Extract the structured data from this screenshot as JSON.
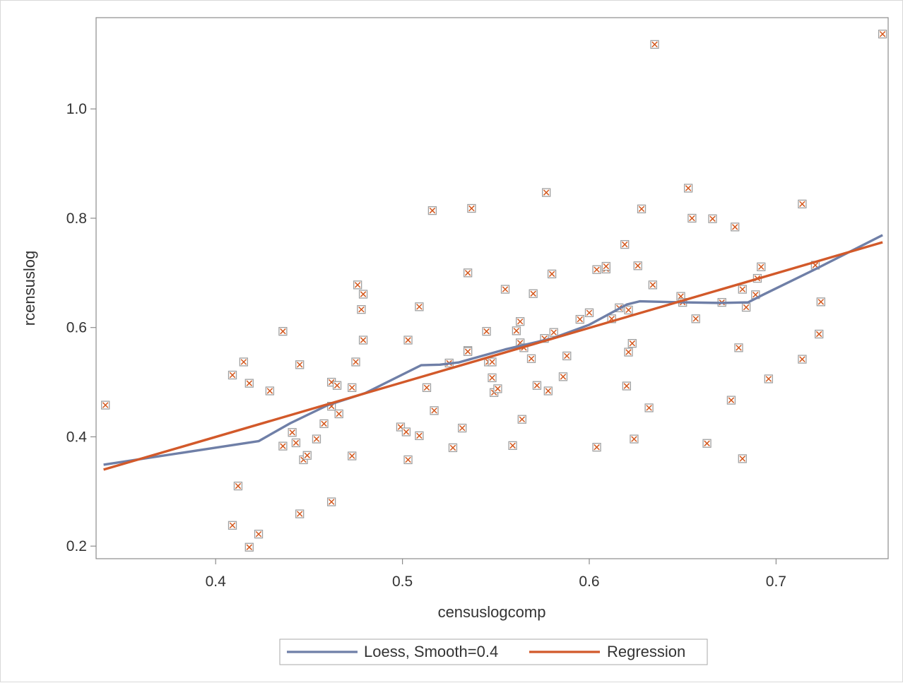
{
  "chart_data": {
    "type": "scatter",
    "title": "",
    "xlabel": "censuslogcomp",
    "ylabel": "rcensuslog",
    "xlim": [
      0.336,
      0.76
    ],
    "ylim": [
      0.177,
      1.167
    ],
    "xticks": [
      0.4,
      0.5,
      0.6,
      0.7
    ],
    "yticks": [
      0.2,
      0.4,
      0.6,
      0.8,
      1.0
    ],
    "xtick_labels": [
      "0.4",
      "0.5",
      "0.6",
      "0.7"
    ],
    "ytick_labels": [
      "0.2",
      "0.4",
      "0.6",
      "0.8",
      "1.0"
    ],
    "grid": false,
    "legend_position": "bottom",
    "colors": {
      "points_outline": "#a0a0a0",
      "points_mark": "#d4581e",
      "loess": "#6f7fa7",
      "regression": "#d2592a",
      "axis": "#8c8c8c"
    },
    "scatter": {
      "marker": "square-x",
      "points": [
        [
          0.341,
          0.458
        ],
        [
          0.409,
          0.513
        ],
        [
          0.409,
          0.238
        ],
        [
          0.412,
          0.31
        ],
        [
          0.415,
          0.537
        ],
        [
          0.418,
          0.498
        ],
        [
          0.418,
          0.198
        ],
        [
          0.423,
          0.222
        ],
        [
          0.429,
          0.484
        ],
        [
          0.436,
          0.593
        ],
        [
          0.436,
          0.383
        ],
        [
          0.441,
          0.408
        ],
        [
          0.443,
          0.389
        ],
        [
          0.445,
          0.532
        ],
        [
          0.445,
          0.259
        ],
        [
          0.447,
          0.358
        ],
        [
          0.449,
          0.366
        ],
        [
          0.454,
          0.396
        ],
        [
          0.458,
          0.424
        ],
        [
          0.462,
          0.5
        ],
        [
          0.462,
          0.456
        ],
        [
          0.462,
          0.281
        ],
        [
          0.465,
          0.494
        ],
        [
          0.466,
          0.442
        ],
        [
          0.473,
          0.49
        ],
        [
          0.473,
          0.365
        ],
        [
          0.475,
          0.537
        ],
        [
          0.476,
          0.678
        ],
        [
          0.478,
          0.633
        ],
        [
          0.479,
          0.661
        ],
        [
          0.479,
          0.577
        ],
        [
          0.499,
          0.418
        ],
        [
          0.502,
          0.409
        ],
        [
          0.503,
          0.577
        ],
        [
          0.503,
          0.358
        ],
        [
          0.509,
          0.638
        ],
        [
          0.509,
          0.402
        ],
        [
          0.513,
          0.49
        ],
        [
          0.516,
          0.814
        ],
        [
          0.517,
          0.448
        ],
        [
          0.525,
          0.535
        ],
        [
          0.527,
          0.38
        ],
        [
          0.532,
          0.416
        ],
        [
          0.535,
          0.558
        ],
        [
          0.535,
          0.556
        ],
        [
          0.535,
          0.7
        ],
        [
          0.537,
          0.818
        ],
        [
          0.545,
          0.593
        ],
        [
          0.546,
          0.537
        ],
        [
          0.548,
          0.537
        ],
        [
          0.548,
          0.508
        ],
        [
          0.549,
          0.481
        ],
        [
          0.551,
          0.488
        ],
        [
          0.555,
          0.67
        ],
        [
          0.559,
          0.384
        ],
        [
          0.561,
          0.594
        ],
        [
          0.563,
          0.611
        ],
        [
          0.563,
          0.572
        ],
        [
          0.564,
          0.432
        ],
        [
          0.565,
          0.563
        ],
        [
          0.569,
          0.543
        ],
        [
          0.57,
          0.662
        ],
        [
          0.572,
          0.494
        ],
        [
          0.576,
          0.58
        ],
        [
          0.577,
          0.847
        ],
        [
          0.578,
          0.484
        ],
        [
          0.58,
          0.698
        ],
        [
          0.581,
          0.591
        ],
        [
          0.586,
          0.51
        ],
        [
          0.588,
          0.548
        ],
        [
          0.595,
          0.615
        ],
        [
          0.6,
          0.627
        ],
        [
          0.604,
          0.706
        ],
        [
          0.604,
          0.381
        ],
        [
          0.609,
          0.707
        ],
        [
          0.609,
          0.712
        ],
        [
          0.612,
          0.616
        ],
        [
          0.616,
          0.636
        ],
        [
          0.619,
          0.752
        ],
        [
          0.62,
          0.493
        ],
        [
          0.621,
          0.632
        ],
        [
          0.621,
          0.555
        ],
        [
          0.623,
          0.571
        ],
        [
          0.624,
          0.396
        ],
        [
          0.626,
          0.713
        ],
        [
          0.628,
          0.817
        ],
        [
          0.632,
          0.453
        ],
        [
          0.634,
          0.678
        ],
        [
          0.635,
          1.118
        ],
        [
          0.649,
          0.657
        ],
        [
          0.65,
          0.646
        ],
        [
          0.653,
          0.855
        ],
        [
          0.655,
          0.8
        ],
        [
          0.657,
          0.616
        ],
        [
          0.663,
          0.388
        ],
        [
          0.666,
          0.799
        ],
        [
          0.671,
          0.646
        ],
        [
          0.676,
          0.467
        ],
        [
          0.678,
          0.784
        ],
        [
          0.68,
          0.563
        ],
        [
          0.682,
          0.67
        ],
        [
          0.682,
          0.36
        ],
        [
          0.684,
          0.637
        ],
        [
          0.689,
          0.66
        ],
        [
          0.69,
          0.69
        ],
        [
          0.692,
          0.711
        ],
        [
          0.696,
          0.506
        ],
        [
          0.714,
          0.826
        ],
        [
          0.714,
          0.542
        ],
        [
          0.721,
          0.714
        ],
        [
          0.723,
          0.588
        ],
        [
          0.724,
          0.647
        ],
        [
          0.757,
          1.137
        ]
      ]
    },
    "series": [
      {
        "name": "Loess, Smooth=0.4",
        "type": "line",
        "x": [
          0.34,
          0.423,
          0.44,
          0.46,
          0.48,
          0.51,
          0.52,
          0.53,
          0.555,
          0.58,
          0.6,
          0.62,
          0.627,
          0.65,
          0.67,
          0.685,
          0.693,
          0.72,
          0.757
        ],
        "y": [
          0.349,
          0.392,
          0.425,
          0.458,
          0.48,
          0.531,
          0.532,
          0.536,
          0.56,
          0.58,
          0.605,
          0.642,
          0.648,
          0.646,
          0.645,
          0.646,
          0.66,
          0.705,
          0.769
        ]
      },
      {
        "name": "Regression",
        "type": "line",
        "x": [
          0.34,
          0.757
        ],
        "y": [
          0.34,
          0.756
        ]
      }
    ]
  }
}
